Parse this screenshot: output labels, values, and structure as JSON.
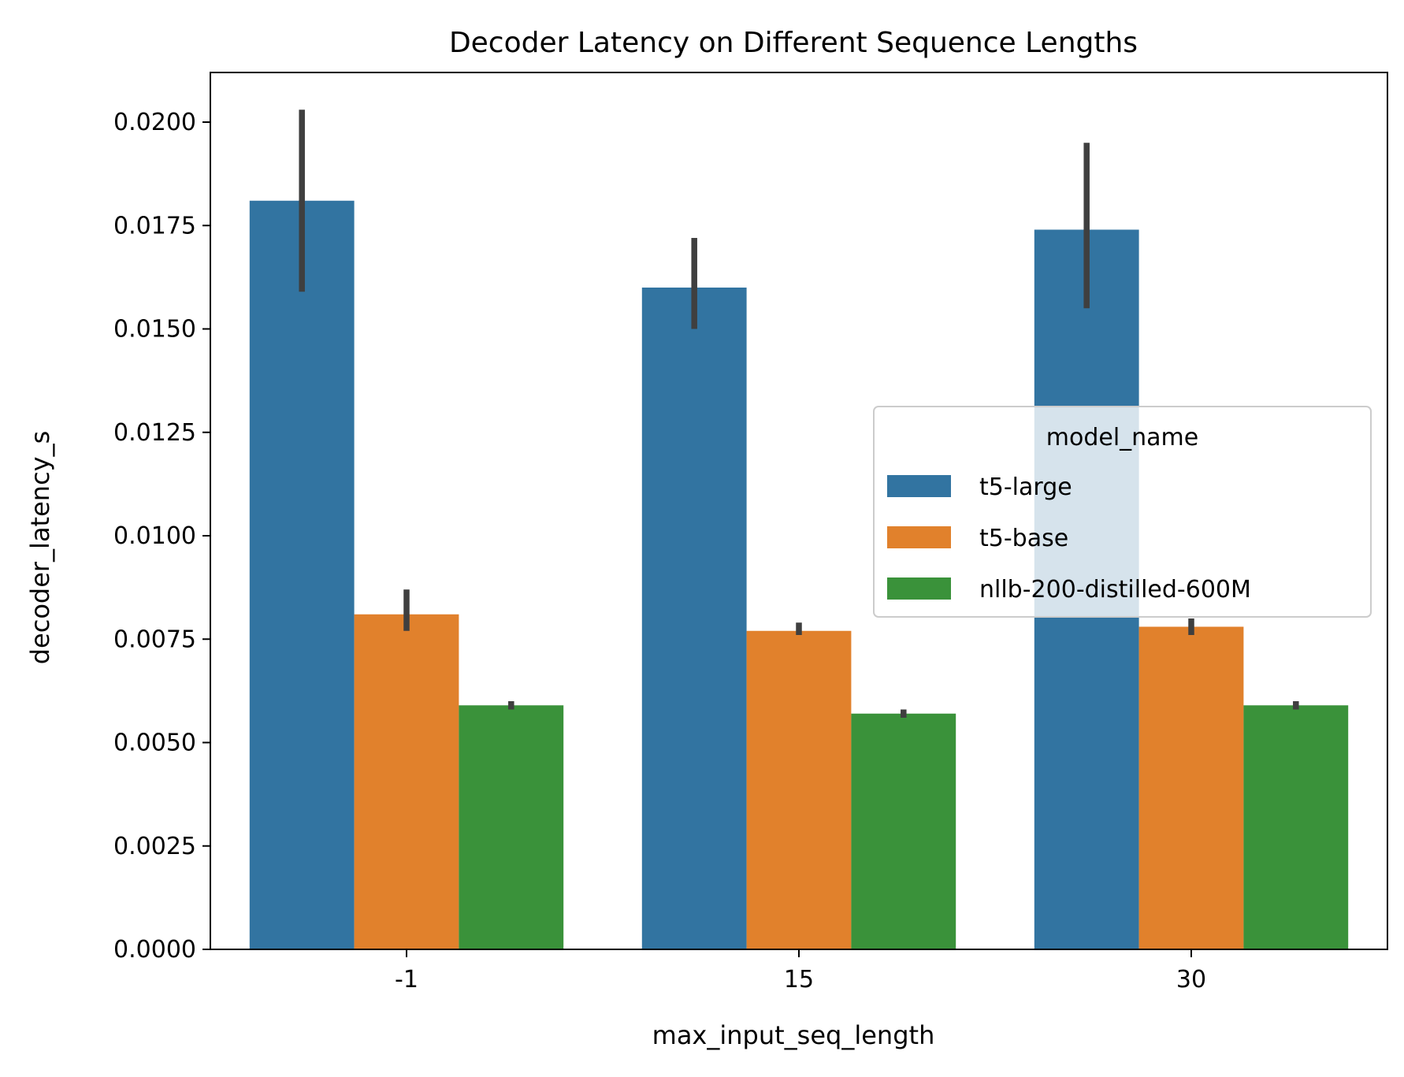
{
  "chart_data": {
    "type": "bar",
    "title": "Decoder Latency on Different Sequence Lengths",
    "xlabel": "max_input_seq_length",
    "ylabel": "decoder_latency_s",
    "categories": [
      "-1",
      "15",
      "30"
    ],
    "ylim": [
      0,
      0.0212
    ],
    "yticks": [
      "0.0000",
      "0.0025",
      "0.0050",
      "0.0075",
      "0.0100",
      "0.0125",
      "0.0150",
      "0.0175",
      "0.0200"
    ],
    "ytick_values": [
      0,
      0.0025,
      0.005,
      0.0075,
      0.01,
      0.0125,
      0.015,
      0.0175,
      0.02
    ],
    "grid": false,
    "legend": {
      "title": "model_name",
      "placement": "center-right"
    },
    "series": [
      {
        "name": "t5-large",
        "color": "#3274a1",
        "values": [
          0.0181,
          0.016,
          0.0174
        ],
        "err_low": [
          0.0159,
          0.015,
          0.0155
        ],
        "err_high": [
          0.0203,
          0.0172,
          0.0195
        ]
      },
      {
        "name": "t5-base",
        "color": "#e1812c",
        "values": [
          0.0081,
          0.0077,
          0.0078
        ],
        "err_low": [
          0.0077,
          0.0076,
          0.0076
        ],
        "err_high": [
          0.0087,
          0.0079,
          0.008
        ]
      },
      {
        "name": "nllb-200-distilled-600M",
        "color": "#3a923a",
        "values": [
          0.0059,
          0.0057,
          0.0059
        ],
        "err_low": [
          0.0058,
          0.0056,
          0.0058
        ],
        "err_high": [
          0.006,
          0.0058,
          0.006
        ]
      }
    ],
    "errorbar_color": "#3f3f3f"
  }
}
